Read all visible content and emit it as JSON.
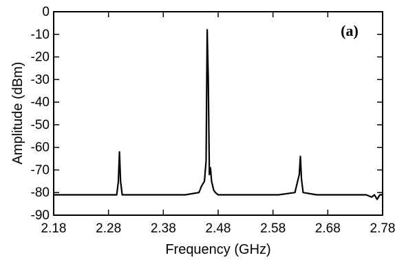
{
  "chart_data": {
    "type": "line",
    "xlabel": "Frequency (GHz)",
    "ylabel": "Amplitude (dBm)",
    "annotation": "(a)",
    "xlim": [
      2.18,
      2.78
    ],
    "ylim": [
      -90,
      0
    ],
    "x_ticks": [
      "2.18",
      "2.28",
      "2.38",
      "2.48",
      "2.58",
      "2.68",
      "2.78"
    ],
    "y_ticks": [
      "0",
      "-10",
      "-20",
      "-30",
      "-40",
      "-50",
      "-60",
      "-70",
      "-80",
      "-90"
    ],
    "noise_floor": -81,
    "series": [
      {
        "x": [
          2.18,
          2.21,
          2.24,
          2.27,
          2.295,
          2.298,
          2.3,
          2.302,
          2.305,
          2.33,
          2.36,
          2.39,
          2.42,
          2.445,
          2.45,
          2.455,
          2.458,
          2.46,
          2.462,
          2.464,
          2.466,
          2.468,
          2.47,
          2.472,
          2.475,
          2.48,
          2.5,
          2.53,
          2.56,
          2.59,
          2.62,
          2.628,
          2.63,
          2.632,
          2.635,
          2.66,
          2.69,
          2.72,
          2.75,
          2.76,
          2.765,
          2.77,
          2.775,
          2.78
        ],
        "y": [
          -81,
          -81,
          -81,
          -81,
          -81,
          -75,
          -62,
          -75,
          -81,
          -81,
          -81,
          -81,
          -81,
          -80,
          -77,
          -75,
          -66,
          -8,
          -30,
          -72,
          -69,
          -75,
          -77,
          -79,
          -80,
          -81,
          -81,
          -81,
          -81,
          -81,
          -80,
          -72,
          -64,
          -74,
          -80,
          -81,
          -81,
          -81,
          -81,
          -82,
          -81,
          -83,
          -81,
          -81
        ]
      }
    ]
  }
}
